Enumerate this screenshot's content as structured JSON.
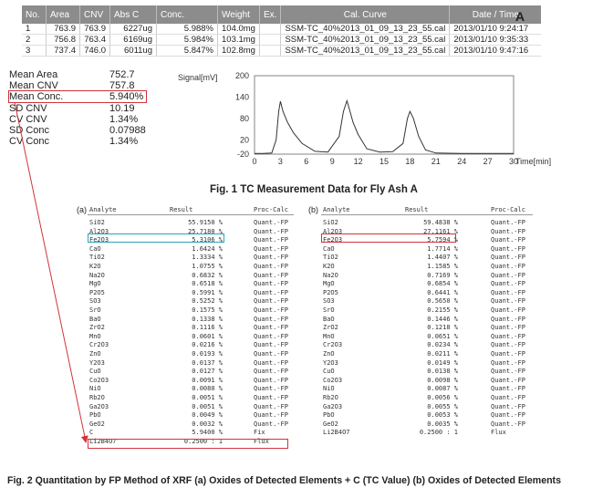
{
  "tc_table": {
    "headers": [
      "No.",
      "Area",
      "CNV",
      "Abs C",
      "Conc.",
      "Weight",
      "Ex.",
      "Cal. Curve",
      "Date / Time"
    ],
    "rows": [
      [
        "1",
        "763.9",
        "763.9",
        "6227ug",
        "5.988%",
        "104.0mg",
        "",
        "SSM-TC_40%2013_01_09_13_23_55.cal",
        "2013/01/10 9:24:17"
      ],
      [
        "2",
        "756.8",
        "763.4",
        "6169ug",
        "5.984%",
        "103.1mg",
        "",
        "SSM-TC_40%2013_01_09_13_23_55.cal",
        "2013/01/10 9:35:33"
      ],
      [
        "3",
        "737.4",
        "746.0",
        "6011ug",
        "5.847%",
        "102.8mg",
        "",
        "SSM-TC_40%2013_01_09_13_23_55.cal",
        "2013/01/10 9:47:16"
      ]
    ]
  },
  "panel_label_a": "A",
  "stats": [
    {
      "label": "Mean Area",
      "value": "752.7"
    },
    {
      "label": "Mean CNV",
      "value": "757.8"
    },
    {
      "label": "Mean Conc.",
      "value": "5.940%"
    },
    {
      "label": "SD CNV",
      "value": "10.19"
    },
    {
      "label": "CV CNV",
      "value": "1.34%"
    },
    {
      "label": "SD Conc",
      "value": "0.07988"
    },
    {
      "label": "CV Conc",
      "value": "1.34%"
    }
  ],
  "chart_data": {
    "type": "line",
    "ylabel": "Signal[mV]",
    "xlabel": "Time[min]",
    "y_ticks": [
      200,
      140,
      80,
      20,
      -20
    ],
    "x_ticks": [
      0,
      3,
      6,
      9,
      12,
      15,
      18,
      21,
      24,
      27,
      30
    ],
    "xlim": [
      0,
      30
    ],
    "ylim": [
      -20,
      200
    ],
    "series": [
      {
        "name": "signal",
        "x": [
          0,
          1,
          2,
          2.5,
          2.8,
          3.0,
          3.3,
          3.8,
          4.5,
          5.5,
          7,
          8.5,
          9.8,
          10.3,
          10.7,
          11.0,
          11.4,
          12,
          13,
          14.5,
          16,
          17.2,
          17.7,
          18.0,
          18.4,
          19,
          19.8,
          21,
          24,
          27,
          30
        ],
        "y": [
          -18,
          -18,
          -17,
          20,
          100,
          128,
          100,
          70,
          40,
          10,
          -12,
          -14,
          30,
          100,
          130,
          105,
          70,
          35,
          -5,
          -14,
          -13,
          10,
          80,
          100,
          80,
          30,
          -8,
          -17,
          -18,
          -18,
          -18
        ]
      }
    ]
  },
  "fig1_caption": "Fig. 1  TC Measurement Data for Fly Ash A",
  "xrf_a": {
    "label": "(a)",
    "headers": [
      "Analyte",
      "Result",
      "Proc-Calc"
    ],
    "rows": [
      [
        "SiO2",
        "55.9150 %",
        "Quant.-FP"
      ],
      [
        "Al2O3",
        "25.7180 %",
        "Quant.-FP"
      ],
      [
        "Fe2O3",
        "5.3106 %",
        "Quant.-FP"
      ],
      [
        "CaO",
        "1.6424 %",
        "Quant.-FP"
      ],
      [
        "TiO2",
        "1.3334 %",
        "Quant.-FP"
      ],
      [
        "K2O",
        "1.0755 %",
        "Quant.-FP"
      ],
      [
        "Na2O",
        "0.6832 %",
        "Quant.-FP"
      ],
      [
        "MgO",
        "0.6518 %",
        "Quant.-FP"
      ],
      [
        "P2O5",
        "0.5991 %",
        "Quant.-FP"
      ],
      [
        "SO3",
        "0.5252 %",
        "Quant.-FP"
      ],
      [
        "SrO",
        "0.1575 %",
        "Quant.-FP"
      ],
      [
        "BaO",
        "0.1338 %",
        "Quant.-FP"
      ],
      [
        "ZrO2",
        "0.1116 %",
        "Quant.-FP"
      ],
      [
        "MnO",
        "0.0601 %",
        "Quant.-FP"
      ],
      [
        "Cr2O3",
        "0.0216 %",
        "Quant.-FP"
      ],
      [
        "ZnO",
        "0.0193 %",
        "Quant.-FP"
      ],
      [
        "Y2O3",
        "0.0137 %",
        "Quant.-FP"
      ],
      [
        "CuO",
        "0.0127 %",
        "Quant.-FP"
      ],
      [
        "Co2O3",
        "0.0091 %",
        "Quant.-FP"
      ],
      [
        "NiO",
        "0.0080 %",
        "Quant.-FP"
      ],
      [
        "Rb2O",
        "0.0051 %",
        "Quant.-FP"
      ],
      [
        "Ga2O3",
        "0.0051 %",
        "Quant.-FP"
      ],
      [
        "PbO",
        "0.0049 %",
        "Quant.-FP"
      ],
      [
        "GeO2",
        "0.0032 %",
        "Quant.-FP"
      ],
      [
        "C",
        "5.9400 %",
        "Fix"
      ],
      [
        "Li2B4O7",
        "0.2500 : 1",
        "Flux"
      ]
    ]
  },
  "xrf_b": {
    "label": "(b)",
    "headers": [
      "Analyte",
      "Result",
      "Proc-Calc"
    ],
    "rows": [
      [
        "SiO2",
        "59.4838 %",
        "Quant.-FP"
      ],
      [
        "Al2O3",
        "27.1161 %",
        "Quant.-FP"
      ],
      [
        "Fe2O3",
        "5.7594 %",
        "Quant.-FP"
      ],
      [
        "CaO",
        "1.7714 %",
        "Quant.-FP"
      ],
      [
        "TiO2",
        "1.4407 %",
        "Quant.-FP"
      ],
      [
        "K2O",
        "1.1585 %",
        "Quant.-FP"
      ],
      [
        "Na2O",
        "0.7169 %",
        "Quant.-FP"
      ],
      [
        "MgO",
        "0.6854 %",
        "Quant.-FP"
      ],
      [
        "P2O5",
        "0.6441 %",
        "Quant.-FP"
      ],
      [
        "SO3",
        "0.5650 %",
        "Quant.-FP"
      ],
      [
        "SrO",
        "0.2155 %",
        "Quant.-FP"
      ],
      [
        "BaO",
        "0.1446 %",
        "Quant.-FP"
      ],
      [
        "ZrO2",
        "0.1218 %",
        "Quant.-FP"
      ],
      [
        "MnO",
        "0.0651 %",
        "Quant.-FP"
      ],
      [
        "Cr2O3",
        "0.0234 %",
        "Quant.-FP"
      ],
      [
        "ZnO",
        "0.0211 %",
        "Quant.-FP"
      ],
      [
        "Y2O3",
        "0.0149 %",
        "Quant.-FP"
      ],
      [
        "CuO",
        "0.0138 %",
        "Quant.-FP"
      ],
      [
        "Co2O3",
        "0.0098 %",
        "Quant.-FP"
      ],
      [
        "NiO",
        "0.0087 %",
        "Quant.-FP"
      ],
      [
        "Rb2O",
        "0.0056 %",
        "Quant.-FP"
      ],
      [
        "Ga2O3",
        "0.0055 %",
        "Quant.-FP"
      ],
      [
        "PbO",
        "0.0053 %",
        "Quant.-FP"
      ],
      [
        "GeO2",
        "0.0035 %",
        "Quant.-FP"
      ],
      [
        "Li2B4O7",
        "0.2500 : 1",
        "Flux"
      ]
    ]
  },
  "fig2_caption": "Fig. 2  Quantitation by FP Method of XRF (a) Oxides of Detected Elements + C (TC Value) (b) Oxides of Detected Elements",
  "colors": {
    "highlight_red": "#d0343a",
    "highlight_teal": "#2aa6b5",
    "header_gray": "#8c8c8c"
  }
}
